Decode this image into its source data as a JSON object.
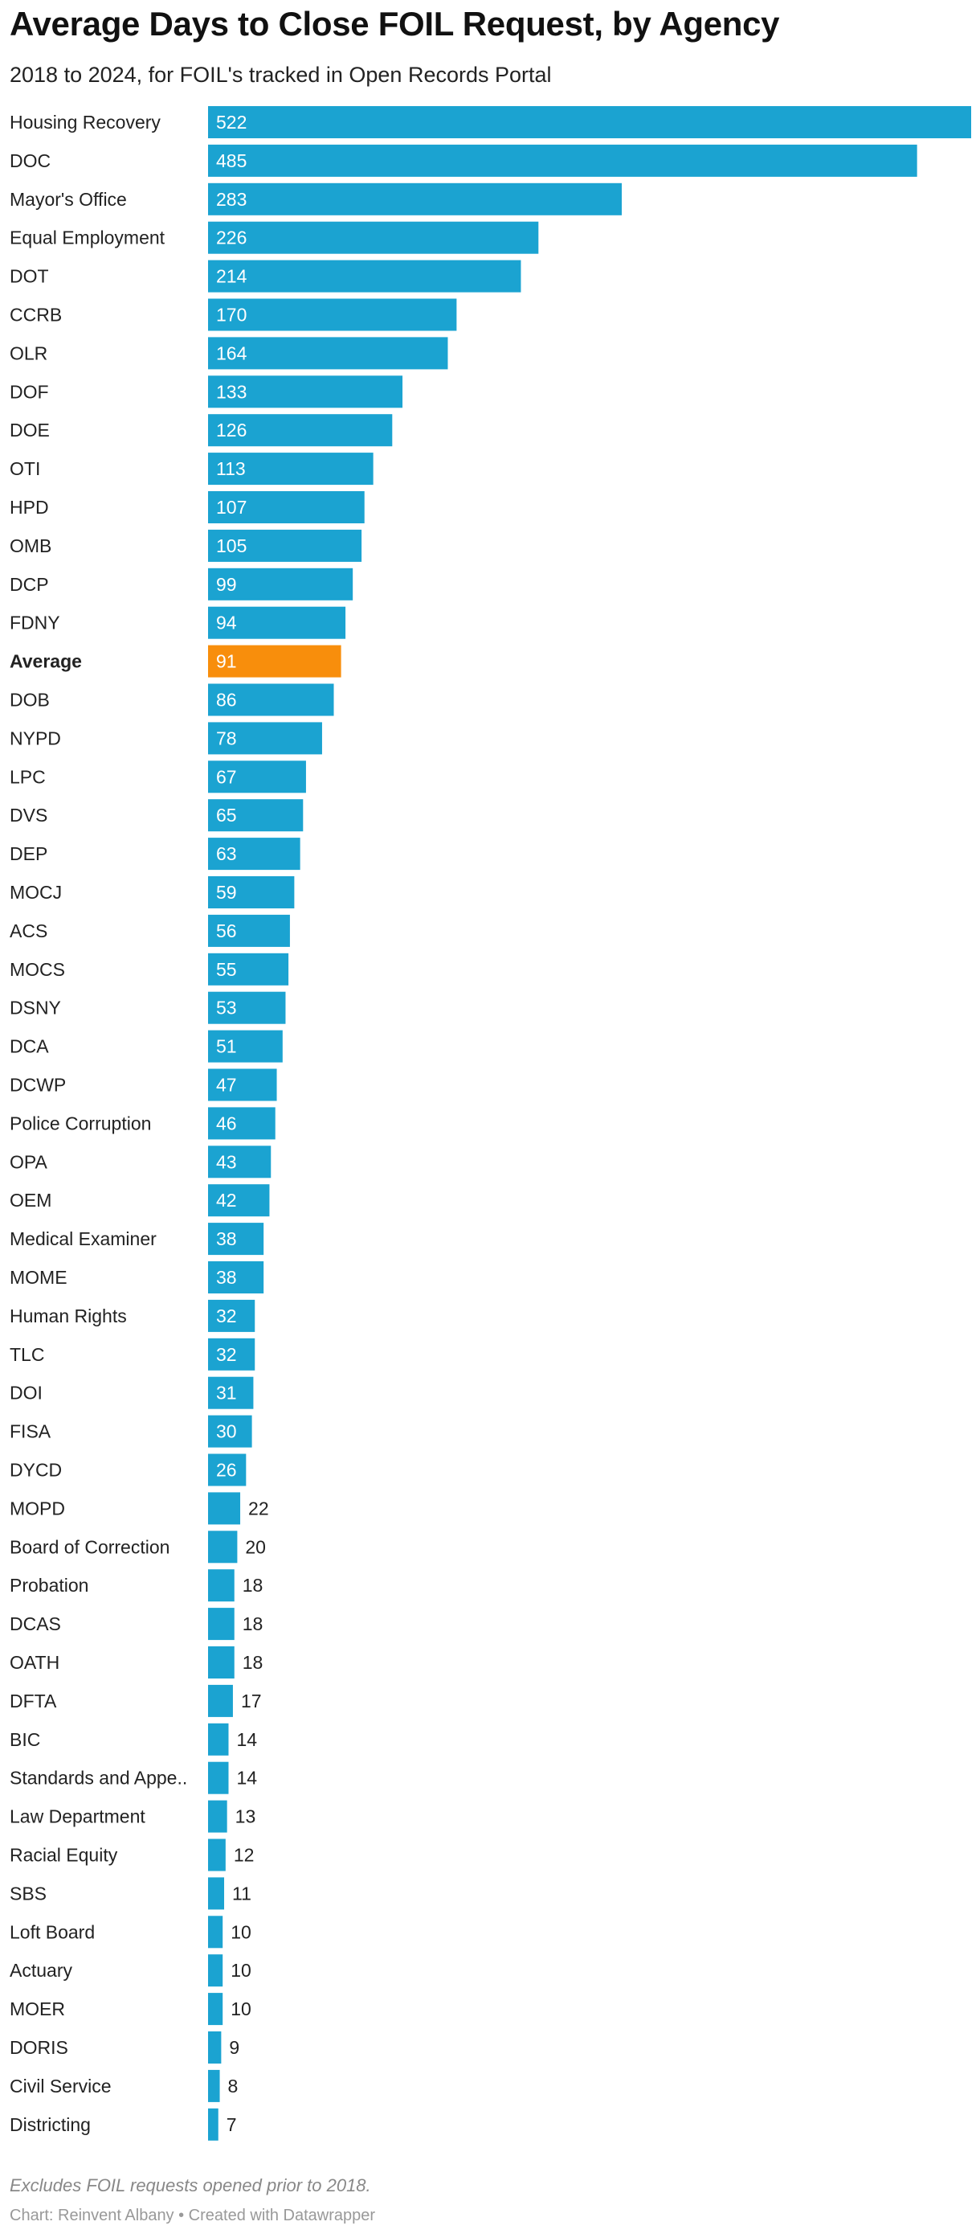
{
  "header": {
    "title": "Average Days to Close FOIL Request, by Agency",
    "subtitle": "2018 to 2024, for FOIL's tracked in Open Records Portal"
  },
  "footer": {
    "note": "Excludes FOIL requests opened prior to 2018.",
    "source": "Chart: Reinvent Albany • Created with Datawrapper"
  },
  "colors": {
    "bar": "#1ba3d1",
    "highlight": "#f88e0c"
  },
  "chart_data": {
    "type": "bar",
    "orientation": "horizontal",
    "title": "Average Days to Close FOIL Request, by Agency",
    "subtitle": "2018 to 2024, for FOIL's tracked in Open Records Portal",
    "xlim": [
      0,
      522
    ],
    "grid": false,
    "highlight_category": "Average",
    "categories": [
      "Housing Recovery",
      "DOC",
      "Mayor's Office",
      "Equal Employment",
      "DOT",
      "CCRB",
      "OLR",
      "DOF",
      "DOE",
      "OTI",
      "HPD",
      "OMB",
      "DCP",
      "FDNY",
      "Average",
      "DOB",
      "NYPD",
      "LPC",
      "DVS",
      "DEP",
      "MOCJ",
      "ACS",
      "MOCS",
      "DSNY",
      "DCA",
      "DCWP",
      "Police Corruption",
      "OPA",
      "OEM",
      "Medical Examiner",
      "MOME",
      "Human Rights",
      "TLC",
      "DOI",
      "FISA",
      "DYCD",
      "MOPD",
      "Board of Correction",
      "Probation",
      "DCAS",
      "OATH",
      "DFTA",
      "BIC",
      "Standards and Appe..",
      "Law Department",
      "Racial Equity",
      "SBS",
      "Loft Board",
      "Actuary",
      "MOER",
      "DORIS",
      "Civil Service",
      "Districting"
    ],
    "values": [
      522,
      485,
      283,
      226,
      214,
      170,
      164,
      133,
      126,
      113,
      107,
      105,
      99,
      94,
      91,
      86,
      78,
      67,
      65,
      63,
      59,
      56,
      55,
      53,
      51,
      47,
      46,
      43,
      42,
      38,
      38,
      32,
      32,
      31,
      30,
      26,
      22,
      20,
      18,
      18,
      18,
      17,
      14,
      14,
      13,
      12,
      11,
      10,
      10,
      10,
      9,
      8,
      7
    ]
  }
}
